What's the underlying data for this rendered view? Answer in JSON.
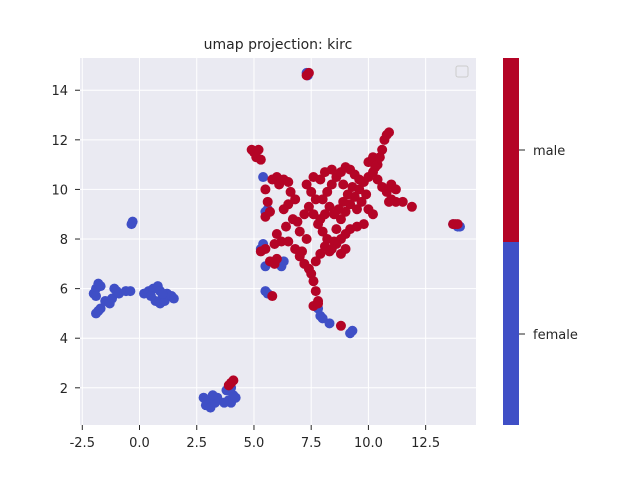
{
  "chart_data": {
    "type": "scatter",
    "title": "umap projection: kirc",
    "xlabel": "",
    "ylabel": "",
    "xlim": [
      -2.6,
      14.7
    ],
    "ylim": [
      0.5,
      15.3
    ],
    "xticks": [
      -2.5,
      0.0,
      2.5,
      5.0,
      7.5,
      10.0,
      12.5
    ],
    "xtick_labels": [
      "-2.5",
      "0.0",
      "2.5",
      "5.0",
      "7.5",
      "10.0",
      "12.5"
    ],
    "yticks": [
      2,
      4,
      6,
      8,
      10,
      12,
      14
    ],
    "ytick_labels": [
      "2",
      "4",
      "6",
      "8",
      "10",
      "12",
      "14"
    ],
    "grid": true,
    "legend": "empty box, top-right",
    "colorbar": {
      "labels": [
        "female",
        "male"
      ],
      "colors": [
        "#3f4fc6",
        "#b40426"
      ]
    },
    "series": [
      {
        "name": "female",
        "color": "#3f4fc6",
        "points": [
          [
            -2.0,
            5.8
          ],
          [
            -1.9,
            6.0
          ],
          [
            -1.8,
            6.2
          ],
          [
            -1.7,
            6.1
          ],
          [
            -1.9,
            5.7
          ],
          [
            -1.8,
            5.1
          ],
          [
            -1.9,
            5.0
          ],
          [
            -1.7,
            5.2
          ],
          [
            -1.5,
            5.5
          ],
          [
            -1.3,
            5.4
          ],
          [
            -1.2,
            5.6
          ],
          [
            -1.1,
            6.0
          ],
          [
            -1.0,
            5.9
          ],
          [
            -0.9,
            5.8
          ],
          [
            -0.6,
            5.9
          ],
          [
            -0.4,
            5.9
          ],
          [
            -0.35,
            8.6
          ],
          [
            -0.3,
            8.7
          ],
          [
            0.2,
            5.8
          ],
          [
            0.4,
            5.9
          ],
          [
            0.6,
            6.0
          ],
          [
            0.8,
            6.1
          ],
          [
            0.9,
            5.9
          ],
          [
            1.0,
            5.6
          ],
          [
            0.7,
            5.5
          ],
          [
            0.9,
            5.4
          ],
          [
            1.1,
            5.5
          ],
          [
            1.2,
            5.8
          ],
          [
            1.4,
            5.7
          ],
          [
            1.5,
            5.6
          ],
          [
            0.5,
            5.7
          ],
          [
            1.0,
            5.8
          ],
          [
            2.8,
            1.6
          ],
          [
            3.0,
            1.5
          ],
          [
            2.9,
            1.3
          ],
          [
            3.1,
            1.2
          ],
          [
            3.3,
            1.4
          ],
          [
            3.4,
            1.6
          ],
          [
            3.2,
            1.7
          ],
          [
            3.8,
            1.9
          ],
          [
            3.9,
            1.5
          ],
          [
            4.0,
            1.4
          ],
          [
            4.1,
            1.7
          ],
          [
            4.2,
            1.6
          ],
          [
            4.0,
            2.0
          ],
          [
            3.7,
            1.4
          ],
          [
            5.3,
            7.6
          ],
          [
            5.4,
            7.8
          ],
          [
            5.5,
            6.9
          ],
          [
            5.5,
            9.1
          ],
          [
            5.6,
            9.2
          ],
          [
            5.4,
            10.5
          ],
          [
            5.5,
            5.9
          ],
          [
            5.6,
            5.8
          ],
          [
            6.2,
            6.9
          ],
          [
            6.3,
            7.1
          ],
          [
            7.3,
            14.7
          ],
          [
            7.35,
            14.6
          ],
          [
            7.8,
            5.2
          ],
          [
            7.9,
            4.9
          ],
          [
            8.0,
            4.8
          ],
          [
            8.3,
            4.6
          ],
          [
            9.3,
            4.3
          ],
          [
            9.2,
            4.2
          ],
          [
            13.9,
            8.5
          ],
          [
            14.0,
            8.5
          ],
          [
            13.7,
            8.6
          ]
        ]
      },
      {
        "name": "male",
        "color": "#b40426",
        "points": [
          [
            7.3,
            14.6
          ],
          [
            7.4,
            14.7
          ],
          [
            4.0,
            2.2
          ],
          [
            4.1,
            2.3
          ],
          [
            3.9,
            2.1
          ],
          [
            4.9,
            11.6
          ],
          [
            5.0,
            11.5
          ],
          [
            5.2,
            11.6
          ],
          [
            5.1,
            11.3
          ],
          [
            5.3,
            11.2
          ],
          [
            5.3,
            7.5
          ],
          [
            5.5,
            7.6
          ],
          [
            5.7,
            7.1
          ],
          [
            5.9,
            7.0
          ],
          [
            6.0,
            7.2
          ],
          [
            5.8,
            5.7
          ],
          [
            5.5,
            8.9
          ],
          [
            5.6,
            9.5
          ],
          [
            5.7,
            9.1
          ],
          [
            5.5,
            10.0
          ],
          [
            5.8,
            10.4
          ],
          [
            6.0,
            10.5
          ],
          [
            6.3,
            10.4
          ],
          [
            6.1,
            10.2
          ],
          [
            6.5,
            10.3
          ],
          [
            6.6,
            9.9
          ],
          [
            6.8,
            9.6
          ],
          [
            6.5,
            9.4
          ],
          [
            6.3,
            9.2
          ],
          [
            6.7,
            8.8
          ],
          [
            6.4,
            8.5
          ],
          [
            6.0,
            8.2
          ],
          [
            6.2,
            7.9
          ],
          [
            5.9,
            7.8
          ],
          [
            6.5,
            7.9
          ],
          [
            6.8,
            7.6
          ],
          [
            7.0,
            7.3
          ],
          [
            7.2,
            7.0
          ],
          [
            7.4,
            6.8
          ],
          [
            7.5,
            6.6
          ],
          [
            7.6,
            6.3
          ],
          [
            7.7,
            5.9
          ],
          [
            7.8,
            5.5
          ],
          [
            7.6,
            5.3
          ],
          [
            7.1,
            7.5
          ],
          [
            7.3,
            8.0
          ],
          [
            7.0,
            8.3
          ],
          [
            6.9,
            8.7
          ],
          [
            7.2,
            9.0
          ],
          [
            7.4,
            9.3
          ],
          [
            7.6,
            9.0
          ],
          [
            7.8,
            8.6
          ],
          [
            8.0,
            8.3
          ],
          [
            8.2,
            8.0
          ],
          [
            8.1,
            7.7
          ],
          [
            7.9,
            7.4
          ],
          [
            7.7,
            7.1
          ],
          [
            8.3,
            7.5
          ],
          [
            8.5,
            7.9
          ],
          [
            8.6,
            8.4
          ],
          [
            8.8,
            8.8
          ],
          [
            9.0,
            9.1
          ],
          [
            9.2,
            9.4
          ],
          [
            9.4,
            9.7
          ],
          [
            9.6,
            10.0
          ],
          [
            9.8,
            10.3
          ],
          [
            10.0,
            10.5
          ],
          [
            10.2,
            10.7
          ],
          [
            10.4,
            10.4
          ],
          [
            10.6,
            10.1
          ],
          [
            10.8,
            9.9
          ],
          [
            11.0,
            9.6
          ],
          [
            11.2,
            9.5
          ],
          [
            11.5,
            9.5
          ],
          [
            11.9,
            9.3
          ],
          [
            10.9,
            9.5
          ],
          [
            8.0,
            9.6
          ],
          [
            8.2,
            9.9
          ],
          [
            8.4,
            10.2
          ],
          [
            8.6,
            10.5
          ],
          [
            8.8,
            10.7
          ],
          [
            9.0,
            10.9
          ],
          [
            9.2,
            10.8
          ],
          [
            9.4,
            10.6
          ],
          [
            9.6,
            10.4
          ],
          [
            9.3,
            10.1
          ],
          [
            9.1,
            9.8
          ],
          [
            8.9,
            9.5
          ],
          [
            8.7,
            9.2
          ],
          [
            8.5,
            9.0
          ],
          [
            8.3,
            9.3
          ],
          [
            8.1,
            9.0
          ],
          [
            7.9,
            8.8
          ],
          [
            7.7,
            9.6
          ],
          [
            7.5,
            9.9
          ],
          [
            7.3,
            10.2
          ],
          [
            7.6,
            10.5
          ],
          [
            7.9,
            10.4
          ],
          [
            8.1,
            10.7
          ],
          [
            8.4,
            10.8
          ],
          [
            8.9,
            10.2
          ],
          [
            9.5,
            9.2
          ],
          [
            9.7,
            9.5
          ],
          [
            9.9,
            9.8
          ],
          [
            10.0,
            9.2
          ],
          [
            10.2,
            9.0
          ],
          [
            9.8,
            8.6
          ],
          [
            9.5,
            8.5
          ],
          [
            9.2,
            8.4
          ],
          [
            9.0,
            8.2
          ],
          [
            8.8,
            8.0
          ],
          [
            8.6,
            7.8
          ],
          [
            8.4,
            7.6
          ],
          [
            8.8,
            7.4
          ],
          [
            9.0,
            7.6
          ],
          [
            10.0,
            11.1
          ],
          [
            10.2,
            11.3
          ],
          [
            10.4,
            11.0
          ],
          [
            10.6,
            11.6
          ],
          [
            10.7,
            12.0
          ],
          [
            10.8,
            12.2
          ],
          [
            10.9,
            12.3
          ],
          [
            10.5,
            11.3
          ],
          [
            10.3,
            10.9
          ],
          [
            11.0,
            10.2
          ],
          [
            11.2,
            10.0
          ],
          [
            8.8,
            4.5
          ],
          [
            7.8,
            5.4
          ],
          [
            13.7,
            8.6
          ],
          [
            13.8,
            8.6
          ],
          [
            13.9,
            8.6
          ]
        ]
      }
    ]
  }
}
